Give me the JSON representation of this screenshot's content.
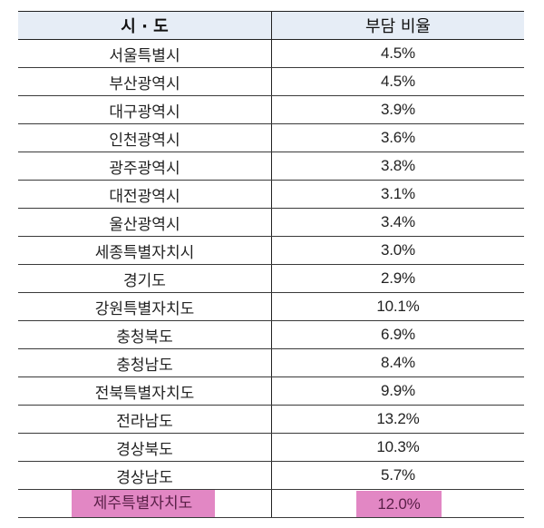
{
  "table": {
    "headers": [
      "시 · 도",
      "부담 비율"
    ],
    "rows": [
      {
        "region": "서울특별시",
        "ratio": "4.5%"
      },
      {
        "region": "부산광역시",
        "ratio": "4.5%"
      },
      {
        "region": "대구광역시",
        "ratio": "3.9%"
      },
      {
        "region": "인천광역시",
        "ratio": "3.6%"
      },
      {
        "region": "광주광역시",
        "ratio": "3.8%"
      },
      {
        "region": "대전광역시",
        "ratio": "3.1%"
      },
      {
        "region": "울산광역시",
        "ratio": "3.4%"
      },
      {
        "region": "세종특별자치시",
        "ratio": "3.0%"
      },
      {
        "region": "경기도",
        "ratio": "2.9%"
      },
      {
        "region": "강원특별자치도",
        "ratio": "10.1%"
      },
      {
        "region": "충청북도",
        "ratio": "6.9%"
      },
      {
        "region": "충청남도",
        "ratio": "8.4%"
      },
      {
        "region": "전북특별자치도",
        "ratio": "9.9%"
      },
      {
        "region": "전라남도",
        "ratio": "13.2%"
      },
      {
        "region": "경상북도",
        "ratio": "10.3%"
      },
      {
        "region": "경상남도",
        "ratio": "5.7%"
      },
      {
        "region": "제주특별자치도",
        "ratio": "12.0%",
        "highlighted": true
      }
    ]
  },
  "colors": {
    "header_bg": "#e6edf6",
    "highlight": "#e287c4",
    "border": "#222222"
  }
}
